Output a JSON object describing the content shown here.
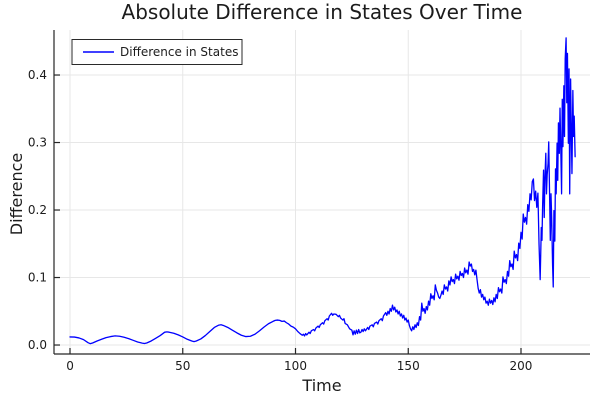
{
  "chart_data": {
    "type": "line",
    "title": "Absolute Difference in States Over Time",
    "xlabel": "Time",
    "ylabel": "Difference",
    "grid": true,
    "legend_position": "top-left",
    "xlim": [
      -7.1,
      230.6
    ],
    "ylim": [
      -0.0133,
      0.4667
    ],
    "xticks": [
      0,
      50,
      100,
      150,
      200
    ],
    "xtick_labels": [
      "0",
      "50",
      "100",
      "150",
      "200"
    ],
    "yticks": [
      0.0,
      0.1,
      0.2,
      0.3,
      0.4
    ],
    "ytick_labels": [
      "0.0",
      "0.1",
      "0.2",
      "0.3",
      "0.4"
    ],
    "series": [
      {
        "name": "Difference in States",
        "color": "#0000ff",
        "points": [
          [
            0,
            0.012
          ],
          [
            2,
            0.0118
          ],
          [
            4,
            0.0105
          ],
          [
            6,
            0.008
          ],
          [
            8,
            0.0035
          ],
          [
            9,
            0.002
          ],
          [
            10,
            0.003
          ],
          [
            12,
            0.006
          ],
          [
            14,
            0.0085
          ],
          [
            16,
            0.011
          ],
          [
            18,
            0.0125
          ],
          [
            20,
            0.0135
          ],
          [
            22,
            0.013
          ],
          [
            24,
            0.0115
          ],
          [
            26,
            0.0095
          ],
          [
            28,
            0.007
          ],
          [
            30,
            0.0045
          ],
          [
            32,
            0.0028
          ],
          [
            33,
            0.0022
          ],
          [
            34,
            0.003
          ],
          [
            36,
            0.006
          ],
          [
            38,
            0.01
          ],
          [
            40,
            0.014
          ],
          [
            42,
            0.019
          ],
          [
            43,
            0.0195
          ],
          [
            44,
            0.019
          ],
          [
            46,
            0.0175
          ],
          [
            48,
            0.015
          ],
          [
            50,
            0.012
          ],
          [
            52,
            0.0085
          ],
          [
            54,
            0.006
          ],
          [
            55,
            0.005
          ],
          [
            56,
            0.006
          ],
          [
            58,
            0.009
          ],
          [
            60,
            0.014
          ],
          [
            62,
            0.02
          ],
          [
            64,
            0.026
          ],
          [
            66,
            0.0295
          ],
          [
            67,
            0.03
          ],
          [
            68,
            0.029
          ],
          [
            70,
            0.026
          ],
          [
            72,
            0.022
          ],
          [
            74,
            0.018
          ],
          [
            76,
            0.0145
          ],
          [
            78,
            0.0125
          ],
          [
            80,
            0.013
          ],
          [
            82,
            0.016
          ],
          [
            84,
            0.021
          ],
          [
            86,
            0.0265
          ],
          [
            88,
            0.0315
          ],
          [
            90,
            0.035
          ],
          [
            91,
            0.0365
          ],
          [
            92,
            0.037
          ],
          [
            93,
            0.0365
          ],
          [
            94,
            0.035
          ],
          [
            95,
            0.0355
          ],
          [
            96,
            0.033
          ],
          [
            97,
            0.031
          ],
          [
            98,
            0.028
          ],
          [
            99,
            0.0265
          ],
          [
            100,
            0.024
          ],
          [
            101,
            0.02
          ],
          [
            102,
            0.017
          ],
          [
            103,
            0.0145
          ],
          [
            103.5,
            0.016
          ],
          [
            104,
            0.0135
          ],
          [
            104.5,
            0.017
          ],
          [
            105,
            0.015
          ],
          [
            106,
            0.019
          ],
          [
            106.5,
            0.017
          ],
          [
            107,
            0.021
          ],
          [
            108,
            0.023
          ],
          [
            108.5,
            0.021
          ],
          [
            109,
            0.025
          ],
          [
            110,
            0.028
          ],
          [
            110.5,
            0.026
          ],
          [
            111,
            0.03
          ],
          [
            112,
            0.033
          ],
          [
            112.5,
            0.031
          ],
          [
            113,
            0.036
          ],
          [
            114,
            0.039
          ],
          [
            114.5,
            0.037
          ],
          [
            115,
            0.043
          ],
          [
            116,
            0.047
          ],
          [
            116.5,
            0.044
          ],
          [
            117,
            0.046
          ],
          [
            118,
            0.0455
          ],
          [
            119,
            0.042
          ],
          [
            119.5,
            0.044
          ],
          [
            120,
            0.04
          ],
          [
            121,
            0.037
          ],
          [
            121.5,
            0.039
          ],
          [
            122,
            0.032
          ],
          [
            123,
            0.03
          ],
          [
            123.5,
            0.027
          ],
          [
            124,
            0.024
          ],
          [
            125,
            0.022
          ],
          [
            125.5,
            0.015
          ],
          [
            126,
            0.021
          ],
          [
            126.5,
            0.016
          ],
          [
            127,
            0.022
          ],
          [
            127.5,
            0.017
          ],
          [
            128,
            0.023
          ],
          [
            128.5,
            0.018
          ],
          [
            129,
            0.019
          ],
          [
            129.5,
            0.023
          ],
          [
            130,
            0.02
          ],
          [
            130.5,
            0.024
          ],
          [
            131,
            0.021
          ],
          [
            132,
            0.026
          ],
          [
            132.5,
            0.023
          ],
          [
            133,
            0.028
          ],
          [
            134,
            0.03
          ],
          [
            134.5,
            0.027
          ],
          [
            135,
            0.032
          ],
          [
            136,
            0.034
          ],
          [
            136.5,
            0.031
          ],
          [
            137,
            0.036
          ],
          [
            138,
            0.039
          ],
          [
            138.5,
            0.036
          ],
          [
            139,
            0.043
          ],
          [
            140,
            0.048
          ],
          [
            140.5,
            0.044
          ],
          [
            141,
            0.05
          ],
          [
            141.5,
            0.046
          ],
          [
            142,
            0.054
          ],
          [
            142.5,
            0.05
          ],
          [
            143,
            0.059
          ],
          [
            143.5,
            0.052
          ],
          [
            144,
            0.056
          ],
          [
            144.5,
            0.049
          ],
          [
            145,
            0.052
          ],
          [
            145.5,
            0.046
          ],
          [
            146,
            0.05
          ],
          [
            146.5,
            0.043
          ],
          [
            147,
            0.046
          ],
          [
            147.5,
            0.04
          ],
          [
            148,
            0.044
          ],
          [
            148.5,
            0.037
          ],
          [
            149,
            0.04
          ],
          [
            149.5,
            0.034
          ],
          [
            150,
            0.037
          ],
          [
            150.5,
            0.029
          ],
          [
            151,
            0.024
          ],
          [
            151.5,
            0.021
          ],
          [
            152,
            0.027
          ],
          [
            152.5,
            0.023
          ],
          [
            153,
            0.03
          ],
          [
            153.5,
            0.026
          ],
          [
            154,
            0.033
          ],
          [
            154.5,
            0.029
          ],
          [
            155,
            0.042
          ],
          [
            155.5,
            0.037
          ],
          [
            156,
            0.062
          ],
          [
            156.5,
            0.05
          ],
          [
            157,
            0.054
          ],
          [
            157.5,
            0.047
          ],
          [
            158,
            0.057
          ],
          [
            158.5,
            0.052
          ],
          [
            159,
            0.065
          ],
          [
            159.5,
            0.059
          ],
          [
            160,
            0.076
          ],
          [
            160.5,
            0.069
          ],
          [
            161,
            0.073
          ],
          [
            161.5,
            0.067
          ],
          [
            162,
            0.089
          ],
          [
            162.5,
            0.081
          ],
          [
            163,
            0.077
          ],
          [
            163.5,
            0.071
          ],
          [
            164,
            0.069
          ],
          [
            164.5,
            0.074
          ],
          [
            165,
            0.08
          ],
          [
            165.5,
            0.075
          ],
          [
            166,
            0.089
          ],
          [
            166.5,
            0.083
          ],
          [
            167,
            0.086
          ],
          [
            167.5,
            0.08
          ],
          [
            168,
            0.095
          ],
          [
            168.5,
            0.089
          ],
          [
            169,
            0.101
          ],
          [
            169.5,
            0.094
          ],
          [
            170,
            0.097
          ],
          [
            170.5,
            0.091
          ],
          [
            171,
            0.105
          ],
          [
            171.5,
            0.098
          ],
          [
            172,
            0.102
          ],
          [
            172.5,
            0.096
          ],
          [
            173,
            0.109
          ],
          [
            173.5,
            0.103
          ],
          [
            174,
            0.106
          ],
          [
            174.5,
            0.1
          ],
          [
            175,
            0.114
          ],
          [
            175.5,
            0.107
          ],
          [
            176,
            0.111
          ],
          [
            176.5,
            0.105
          ],
          [
            177,
            0.123
          ],
          [
            177.5,
            0.117
          ],
          [
            178,
            0.12
          ],
          [
            178.5,
            0.109
          ],
          [
            179,
            0.112
          ],
          [
            179.5,
            0.104
          ],
          [
            180,
            0.111
          ],
          [
            180.5,
            0.097
          ],
          [
            181,
            0.084
          ],
          [
            181.5,
            0.077
          ],
          [
            182,
            0.082
          ],
          [
            182.5,
            0.071
          ],
          [
            183,
            0.075
          ],
          [
            183.5,
            0.067
          ],
          [
            184,
            0.071
          ],
          [
            184.5,
            0.062
          ],
          [
            185,
            0.065
          ],
          [
            185.5,
            0.059
          ],
          [
            186,
            0.068
          ],
          [
            186.5,
            0.062
          ],
          [
            187,
            0.066
          ],
          [
            187.5,
            0.06
          ],
          [
            188,
            0.07
          ],
          [
            188.5,
            0.064
          ],
          [
            189,
            0.075
          ],
          [
            189.5,
            0.069
          ],
          [
            190,
            0.085
          ],
          [
            190.5,
            0.079
          ],
          [
            191,
            0.083
          ],
          [
            191.5,
            0.077
          ],
          [
            192,
            0.101
          ],
          [
            192.5,
            0.093
          ],
          [
            193,
            0.097
          ],
          [
            193.5,
            0.091
          ],
          [
            194,
            0.109
          ],
          [
            194.5,
            0.102
          ],
          [
            195,
            0.125
          ],
          [
            195.5,
            0.116
          ],
          [
            196,
            0.12
          ],
          [
            196.5,
            0.112
          ],
          [
            197,
            0.139
          ],
          [
            197.5,
            0.129
          ],
          [
            198,
            0.134
          ],
          [
            198.5,
            0.125
          ],
          [
            199,
            0.151
          ],
          [
            199.5,
            0.143
          ],
          [
            200,
            0.167
          ],
          [
            200.5,
            0.157
          ],
          [
            201,
            0.194
          ],
          [
            201.5,
            0.182
          ],
          [
            202,
            0.189
          ],
          [
            202.5,
            0.179
          ],
          [
            203,
            0.208
          ],
          [
            203.5,
            0.198
          ],
          [
            204,
            0.224
          ],
          [
            204.5,
            0.215
          ],
          [
            205,
            0.242
          ],
          [
            205.5,
            0.246
          ],
          [
            206,
            0.214
          ],
          [
            206.5,
            0.228
          ],
          [
            207,
            0.204
          ],
          [
            207.5,
            0.225
          ],
          [
            208,
            0.149
          ],
          [
            208.5,
            0.097
          ],
          [
            209,
            0.174
          ],
          [
            209.3,
            0.155
          ],
          [
            209.6,
            0.209
          ],
          [
            210,
            0.259
          ],
          [
            210.3,
            0.189
          ],
          [
            210.6,
            0.246
          ],
          [
            211,
            0.284
          ],
          [
            211.3,
            0.224
          ],
          [
            211.6,
            0.252
          ],
          [
            212,
            0.269
          ],
          [
            212.3,
            0.301
          ],
          [
            212.6,
            0.239
          ],
          [
            213,
            0.155
          ],
          [
            213.3,
            0.224
          ],
          [
            213.6,
            0.189
          ],
          [
            214,
            0.119
          ],
          [
            214.3,
            0.086
          ],
          [
            214.6,
            0.199
          ],
          [
            215,
            0.154
          ],
          [
            215.3,
            0.261
          ],
          [
            215.6,
            0.224
          ],
          [
            216,
            0.299
          ],
          [
            216.3,
            0.244
          ],
          [
            216.6,
            0.329
          ],
          [
            217,
            0.284
          ],
          [
            217.3,
            0.351
          ],
          [
            217.6,
            0.299
          ],
          [
            218,
            0.224
          ],
          [
            218.3,
            0.364
          ],
          [
            218.6,
            0.294
          ],
          [
            219,
            0.384
          ],
          [
            219.3,
            0.309
          ],
          [
            219.6,
            0.424
          ],
          [
            220,
            0.455
          ],
          [
            220.3,
            0.359
          ],
          [
            220.6,
            0.432
          ],
          [
            221,
            0.299
          ],
          [
            221.3,
            0.409
          ],
          [
            221.6,
            0.224
          ],
          [
            222,
            0.394
          ],
          [
            222.3,
            0.319
          ],
          [
            222.6,
            0.254
          ],
          [
            223,
            0.377
          ],
          [
            223.3,
            0.309
          ],
          [
            223.6,
            0.339
          ],
          [
            224,
            0.279
          ]
        ]
      }
    ]
  },
  "colors": {
    "series_blue": "#0000ff",
    "grid": "#e7e7e7",
    "spine": "#262626",
    "text": "#1c1c1c",
    "legend_border": "#2a2a2a",
    "background": "#ffffff"
  }
}
